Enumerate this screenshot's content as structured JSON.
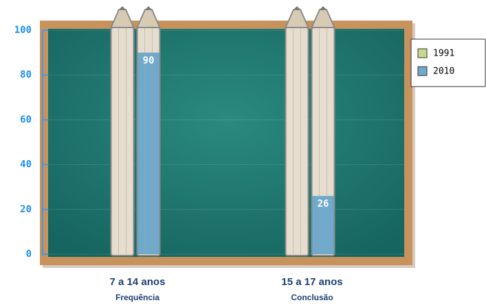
{
  "chart_data": {
    "type": "bar",
    "categories": [
      "7 a 14 anos",
      "15 a 17 anos"
    ],
    "subcategories": [
      "Frequência",
      "Conclusão"
    ],
    "series": [
      {
        "name": "1991",
        "color": "#c5d88c",
        "values": [
          0,
          0
        ]
      },
      {
        "name": "2010",
        "color": "#6fa9cc",
        "values": [
          90,
          26
        ]
      }
    ],
    "ylim": [
      0,
      100
    ],
    "yticks": [
      0,
      20,
      40,
      60,
      80,
      100
    ],
    "grid": true,
    "legend": "right"
  }
}
